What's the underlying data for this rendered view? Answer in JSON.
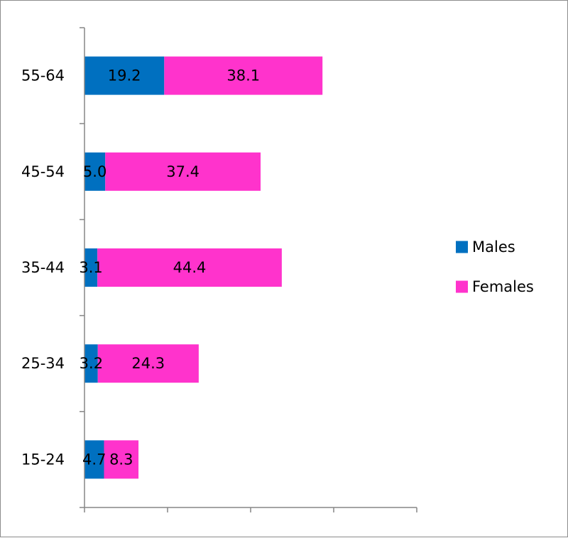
{
  "chart_data": {
    "type": "bar",
    "orientation": "horizontal",
    "stacked": true,
    "categories": [
      "15-24",
      "25-34",
      "35-44",
      "45-54",
      "55-64"
    ],
    "series": [
      {
        "name": "Males",
        "values": [
          4.7,
          3.2,
          3.1,
          5.0,
          19.2
        ],
        "labels": [
          "4.7",
          "3.2",
          "3.1",
          "5.0",
          "19.2"
        ],
        "color": "#0070C0"
      },
      {
        "name": "Females",
        "values": [
          8.3,
          24.3,
          44.4,
          37.4,
          38.1
        ],
        "labels": [
          "8.3",
          "24.3",
          "44.4",
          "37.4",
          "38.1"
        ],
        "color": "#FF33CC"
      }
    ],
    "xlim": [
      0,
      80
    ],
    "x_major_step": 20,
    "x_tick_labels_shown": false,
    "grid": false,
    "legend_position": "right",
    "title": "",
    "xlabel": "",
    "ylabel": ""
  }
}
